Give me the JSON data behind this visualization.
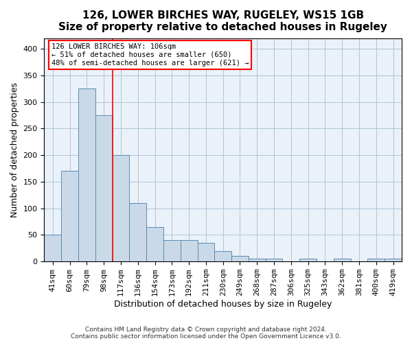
{
  "title": "126, LOWER BIRCHES WAY, RUGELEY, WS15 1GB",
  "subtitle": "Size of property relative to detached houses in Rugeley",
  "xlabel": "Distribution of detached houses by size in Rugeley",
  "ylabel": "Number of detached properties",
  "categories": [
    "41sqm",
    "60sqm",
    "79sqm",
    "98sqm",
    "117sqm",
    "136sqm",
    "154sqm",
    "173sqm",
    "192sqm",
    "211sqm",
    "230sqm",
    "249sqm",
    "268sqm",
    "287sqm",
    "306sqm",
    "325sqm",
    "343sqm",
    "362sqm",
    "381sqm",
    "400sqm",
    "419sqm"
  ],
  "values": [
    50,
    170,
    325,
    275,
    200,
    110,
    65,
    40,
    40,
    35,
    20,
    10,
    5,
    5,
    0,
    5,
    0,
    5,
    0,
    5,
    5
  ],
  "bar_color": "#c9d9e8",
  "bar_edge_color": "#5a8ab0",
  "grid_color": "#b0c4d8",
  "background_color": "#eaf1f8",
  "annotation_box_text": "126 LOWER BIRCHES WAY: 106sqm\n← 51% of detached houses are smaller (650)\n48% of semi-detached houses are larger (621) →",
  "annotation_box_color": "white",
  "annotation_box_edge_color": "red",
  "redline_x": 3.5,
  "footer_line1": "Contains HM Land Registry data © Crown copyright and database right 2024.",
  "footer_line2": "Contains public sector information licensed under the Open Government Licence v3.0.",
  "ylim": [
    0,
    420
  ],
  "title_fontsize": 11,
  "subtitle_fontsize": 10,
  "tick_fontsize": 8,
  "label_fontsize": 9
}
